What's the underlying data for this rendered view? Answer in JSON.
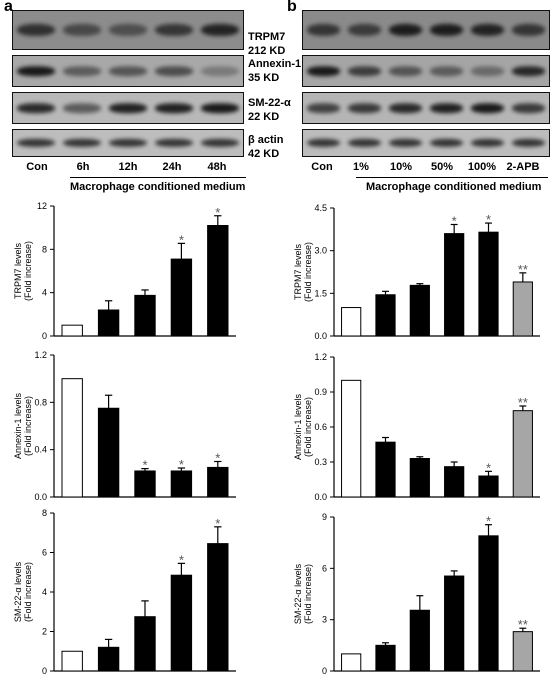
{
  "panels": {
    "a": {
      "letter": "a",
      "lanes": [
        "Con",
        "6h",
        "12h",
        "24h",
        "48h"
      ],
      "treatment_label": "Macrophage conditioned medium",
      "blots": [
        {
          "line1": "TRPM7",
          "line2": "212 KD",
          "intensity": [
            0.75,
            0.55,
            0.5,
            0.7,
            0.85
          ],
          "background": "#8c8c8c"
        },
        {
          "line1": "Annexin-1",
          "line2": "35 KD",
          "intensity": [
            0.95,
            0.5,
            0.55,
            0.6,
            0.3
          ],
          "background": "#a8a8a8"
        },
        {
          "line1": "SM-22-α",
          "line2": "22 KD",
          "intensity": [
            0.85,
            0.55,
            0.9,
            0.9,
            0.95
          ],
          "background": "#b8b8b8"
        },
        {
          "line1": "β actin",
          "line2": "42 KD",
          "intensity": [
            0.8,
            0.8,
            0.8,
            0.8,
            0.8
          ],
          "background": "#bdbdbd"
        }
      ]
    },
    "b": {
      "letter": "b",
      "lanes": [
        "Con",
        "1%",
        "10%",
        "50%",
        "100%",
        "2-APB"
      ],
      "treatment_label": "Macrophage conditioned medium",
      "blots": [
        {
          "intensity": [
            0.7,
            0.65,
            0.9,
            0.9,
            0.85,
            0.7
          ],
          "background": "#8a8a8a"
        },
        {
          "intensity": [
            0.95,
            0.7,
            0.55,
            0.5,
            0.4,
            0.85
          ],
          "background": "#a5a5a5"
        },
        {
          "intensity": [
            0.7,
            0.75,
            0.85,
            0.9,
            0.95,
            0.75
          ],
          "background": "#b5b5b5"
        },
        {
          "intensity": [
            0.8,
            0.8,
            0.8,
            0.8,
            0.8,
            0.8
          ],
          "background": "#bcbcbc"
        }
      ]
    }
  },
  "chart_data": [
    {
      "panel": "a",
      "type": "bar",
      "ylabel_line1": "TRPM7 levels",
      "ylabel_line2": "(Fold increase)",
      "ylim": [
        0,
        12
      ],
      "yticks": [
        "0",
        "4",
        "8",
        "12"
      ],
      "categories": [
        "Con",
        "6h",
        "12h",
        "24h",
        "48h"
      ],
      "values": [
        1.0,
        2.4,
        3.75,
        7.1,
        10.2
      ],
      "errors": [
        0,
        0.85,
        0.5,
        1.45,
        0.9
      ],
      "colors": [
        "white",
        "black",
        "black",
        "black",
        "black"
      ],
      "annotations": [
        "",
        "",
        "",
        "*",
        "*"
      ]
    },
    {
      "panel": "a",
      "type": "bar",
      "ylabel_line1": "Annexin-1 levels",
      "ylabel_line2": "(Fold increase)",
      "ylim": [
        0,
        1.2
      ],
      "yticks": [
        "0.0",
        "0.4",
        "0.8",
        "1.2"
      ],
      "categories": [
        "Con",
        "6h",
        "12h",
        "24h",
        "48h"
      ],
      "values": [
        1.0,
        0.75,
        0.22,
        0.22,
        0.25
      ],
      "errors": [
        0,
        0.11,
        0.02,
        0.025,
        0.05
      ],
      "colors": [
        "white",
        "black",
        "black",
        "black",
        "black"
      ],
      "annotations": [
        "",
        "",
        "*",
        "*",
        "*"
      ]
    },
    {
      "panel": "a",
      "type": "bar",
      "ylabel_line1": "SM-22-α  levels",
      "ylabel_line2": "(Fold increase)",
      "ylim": [
        0,
        8
      ],
      "yticks": [
        "0",
        "2",
        "4",
        "6",
        "8"
      ],
      "categories": [
        "Con",
        "6h",
        "12h",
        "24h",
        "48h"
      ],
      "values": [
        1.0,
        1.2,
        2.75,
        4.85,
        6.45
      ],
      "errors": [
        0,
        0.4,
        0.8,
        0.6,
        0.85
      ],
      "colors": [
        "white",
        "black",
        "black",
        "black",
        "black"
      ],
      "annotations": [
        "",
        "",
        "",
        "*",
        "*"
      ]
    },
    {
      "panel": "b",
      "type": "bar",
      "ylabel_line1": "TRPM7 levels",
      "ylabel_line2": "(Fold increase)",
      "ylim": [
        0,
        4.5
      ],
      "yticks": [
        "0.0",
        "1.5",
        "3.0",
        "4.5"
      ],
      "categories": [
        "Con",
        "1%",
        "10%",
        "50%",
        "100%",
        "2-APB"
      ],
      "values": [
        1.0,
        1.45,
        1.78,
        3.6,
        3.65,
        1.9
      ],
      "errors": [
        0,
        0.12,
        0.06,
        0.32,
        0.32,
        0.32
      ],
      "colors": [
        "white",
        "black",
        "black",
        "black",
        "black",
        "gray"
      ],
      "annotations": [
        "",
        "",
        "",
        "*",
        "*",
        "**"
      ]
    },
    {
      "panel": "b",
      "type": "bar",
      "ylabel_line1": "Annexin-1 levels",
      "ylabel_line2": "(Fold increase)",
      "ylim": [
        0,
        1.2
      ],
      "yticks": [
        "0.0",
        "0.3",
        "0.6",
        "0.9",
        "1.2"
      ],
      "categories": [
        "Con",
        "1%",
        "10%",
        "50%",
        "100%",
        "2-APB"
      ],
      "values": [
        1.0,
        0.47,
        0.33,
        0.26,
        0.18,
        0.74
      ],
      "errors": [
        0,
        0.04,
        0.015,
        0.04,
        0.04,
        0.04
      ],
      "colors": [
        "white",
        "black",
        "black",
        "black",
        "black",
        "gray"
      ],
      "annotations": [
        "",
        "",
        "",
        "",
        "*",
        "**"
      ]
    },
    {
      "panel": "b",
      "type": "bar",
      "ylabel_line1": "SM-22-α  levels",
      "ylabel_line2": "(Fold increase)",
      "ylim": [
        0,
        9
      ],
      "yticks": [
        "0",
        "3",
        "6",
        "9"
      ],
      "categories": [
        "Con",
        "1%",
        "10%",
        "50%",
        "100%",
        "2-APB"
      ],
      "values": [
        1.0,
        1.5,
        3.55,
        5.55,
        7.9,
        2.3
      ],
      "errors": [
        0,
        0.15,
        0.85,
        0.3,
        0.65,
        0.2
      ],
      "colors": [
        "white",
        "black",
        "black",
        "black",
        "black",
        "gray"
      ],
      "annotations": [
        "",
        "",
        "",
        "",
        "*",
        "**"
      ]
    }
  ]
}
